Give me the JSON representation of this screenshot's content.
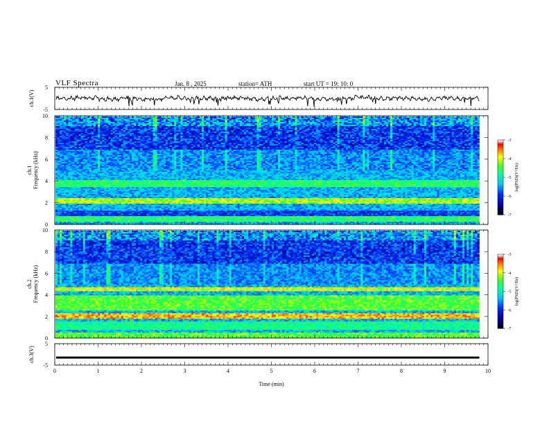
{
  "header": {
    "title": "VLF  Spectra",
    "date": "Jan.  8  , 2025",
    "station": "station= ATH",
    "start": "start  UT  =    19: 10: 0"
  },
  "chart_data": [
    {
      "type": "line",
      "panel": "ch1_waveform",
      "ylabel": "ch.1(V)",
      "ylim": [
        -5,
        5
      ],
      "yticks": [
        "5",
        "-5"
      ],
      "xlim": [
        0,
        10
      ],
      "series": [
        {
          "values": [
            0.0,
            0.3,
            -0.2,
            0.1,
            -0.4,
            0.2,
            0.0,
            -0.1,
            0.3,
            -0.3,
            0.1,
            0.2,
            -0.2,
            0.0,
            0.4,
            -0.1,
            0.1,
            -0.3,
            0.2,
            0.0
          ]
        }
      ],
      "color": "#000000"
    },
    {
      "type": "heatmap",
      "panel": "ch1_spectrogram",
      "ylabel": "ch.1\nFrequency  (kHz)",
      "ylim": [
        0,
        10
      ],
      "yticks": [
        "0",
        "2",
        "4",
        "6",
        "8",
        "10"
      ],
      "xlim": [
        0,
        9.8
      ],
      "colorbar": {
        "label": "log(PSD)(V²/Hz)",
        "ticks": [
          "-3",
          "-4",
          "-5",
          "-6",
          "-7"
        ],
        "range": [
          -7,
          -3
        ]
      }
    },
    {
      "type": "heatmap",
      "panel": "ch2_spectrogram",
      "ylabel": "ch.2\nFrequency  (kHz)",
      "ylim": [
        0,
        10
      ],
      "yticks": [
        "0",
        "2",
        "4",
        "6",
        "8",
        "10"
      ],
      "xlim": [
        0,
        9.8
      ],
      "colorbar": {
        "label": "log(PSD)(V²/Hz)",
        "ticks": [
          "-3",
          "-4",
          "-5",
          "-6",
          "-7"
        ],
        "range": [
          -7,
          -3
        ]
      }
    },
    {
      "type": "line",
      "panel": "ch3_waveform",
      "ylabel": "ch.3(V)",
      "ylim": [
        -5,
        5
      ],
      "yticks": [
        "5",
        "-5"
      ],
      "xlim": [
        0,
        10
      ],
      "series": [
        {
          "values": [
            -1.5,
            -1.5
          ]
        }
      ],
      "color": "#000000"
    }
  ],
  "xaxis": {
    "label": "Time  (min)",
    "ticks": [
      "0",
      "1",
      "2",
      "3",
      "4",
      "5",
      "6",
      "7",
      "8",
      "9",
      "10"
    ],
    "range": [
      0,
      10
    ]
  },
  "colors": {
    "colormap": [
      "#000000",
      "#0000a0",
      "#0030ff",
      "#00c8ff",
      "#00ffa0",
      "#30ff30",
      "#ffff00",
      "#ff8000",
      "#ff0000",
      "#ffffff"
    ]
  }
}
